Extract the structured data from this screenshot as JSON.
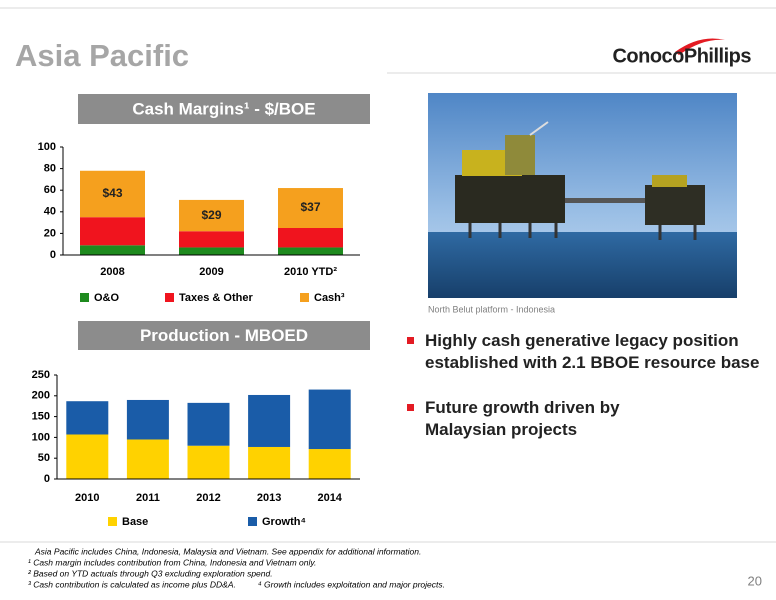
{
  "title": "Asia Pacific",
  "logo": "ConocoPhillips",
  "photo_caption": "North Belut platform - Indonesia",
  "bullets": [
    "Highly cash generative legacy position established with 2.1 BBOE resource base",
    "Future growth driven by Malaysian projects"
  ],
  "footnotes": [
    "Asia Pacific includes China, Indonesia, Malaysia and Vietnam.  See appendix for additional information.",
    "¹ Cash margin includes contribution from China, Indonesia and Vietnam only.",
    "² Based on YTD actuals through Q3 excluding exploration spend.",
    "³ Cash contribution is calculated as income plus DD&A.",
    "⁴ Growth includes exploitation and major projects."
  ],
  "page_number": "20",
  "chart_data": [
    {
      "type": "stacked_bar",
      "title": "Cash Margins¹ - $/BOE",
      "categories": [
        "2008",
        "2009",
        "2010 YTD²"
      ],
      "series": [
        {
          "name": "O&O",
          "color": "#1e8a1e",
          "values": [
            9,
            7,
            7
          ]
        },
        {
          "name": "Taxes & Other",
          "color": "#f0141e",
          "values": [
            26,
            15,
            18
          ]
        },
        {
          "name": "Cash³",
          "color": "#f5a01e",
          "values": [
            43,
            29,
            37
          ],
          "value_labels": [
            "$43",
            "$29",
            "$37"
          ]
        }
      ],
      "ylim": [
        0,
        100
      ],
      "yticks": [
        0,
        20,
        40,
        60,
        80,
        100
      ]
    },
    {
      "type": "stacked_bar",
      "title": "Production - MBOED",
      "categories": [
        "2010",
        "2011",
        "2012",
        "2013",
        "2014"
      ],
      "series": [
        {
          "name": "Base",
          "color": "#ffd200",
          "values": [
            107,
            95,
            80,
            77,
            72
          ]
        },
        {
          "name": "Growth⁴",
          "color": "#1a5ca8",
          "values": [
            80,
            95,
            103,
            125,
            143
          ]
        }
      ],
      "ylim": [
        0,
        250
      ],
      "yticks": [
        0,
        50,
        100,
        150,
        200,
        250
      ]
    }
  ]
}
